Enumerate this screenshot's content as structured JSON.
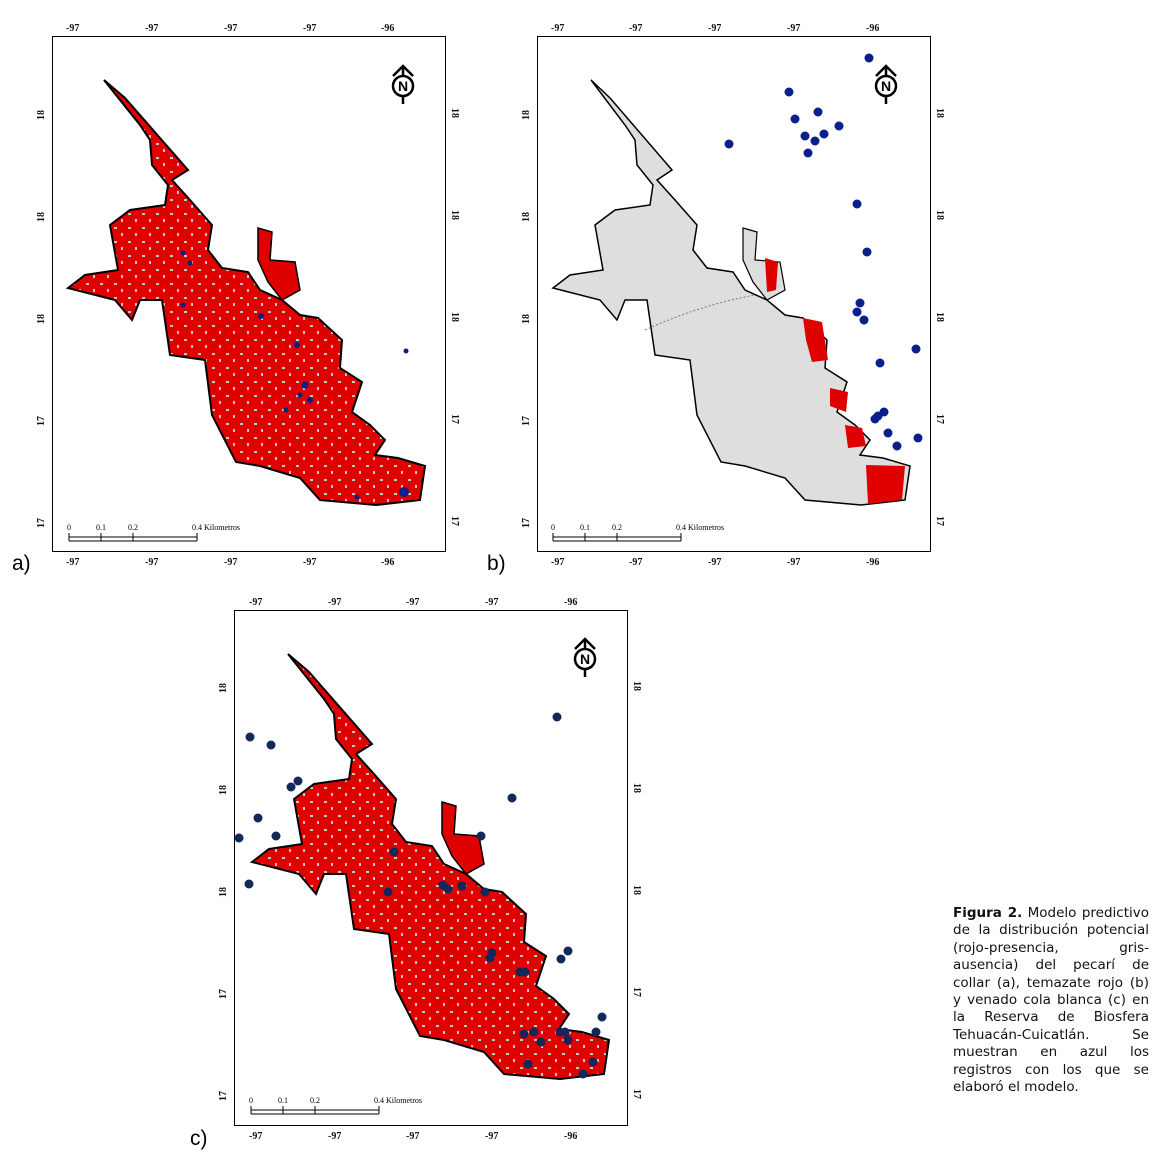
{
  "panels": [
    {
      "id": "a",
      "label": "a)",
      "top_ticks": [
        "-97",
        "-97",
        "-97",
        "-97",
        "-96"
      ],
      "bottom_ticks": [
        "-97",
        "-97",
        "-97",
        "-97",
        "-96"
      ],
      "left_ticks": [
        "18",
        "18",
        "18",
        "17",
        "17"
      ],
      "right_ticks": [
        "18",
        "18",
        "18",
        "17",
        "17"
      ],
      "scale": [
        "0",
        "0.1",
        "0.2",
        "0.4 Kilometros"
      ],
      "north": "N"
    },
    {
      "id": "b",
      "label": "b)",
      "top_ticks": [
        "-97",
        "-97",
        "-97",
        "-97",
        "-96"
      ],
      "bottom_ticks": [
        "-97",
        "-97",
        "-97",
        "-97",
        "-96"
      ],
      "left_ticks": [
        "18",
        "18",
        "18",
        "17",
        "17"
      ],
      "right_ticks": [
        "18",
        "18",
        "18",
        "17",
        "17"
      ],
      "scale": [
        "0",
        "0.1",
        "0.2",
        "0.4 Kilometros"
      ],
      "north": "N"
    },
    {
      "id": "c",
      "label": "c)",
      "top_ticks": [
        "-97",
        "-97",
        "-97",
        "-97",
        "-96"
      ],
      "bottom_ticks": [
        "-97",
        "-97",
        "-97",
        "-97",
        "-96"
      ],
      "left_ticks": [
        "18",
        "18",
        "18",
        "17",
        "17"
      ],
      "right_ticks": [
        "18",
        "18",
        "18",
        "17",
        "17"
      ],
      "scale": [
        "0",
        "0.1",
        "0.2",
        "0.4 Kilometros"
      ],
      "north": "N"
    }
  ],
  "legend_colors": {
    "presence": "#e00000",
    "absence": "#c8c8c8",
    "records": "#0a1e8c"
  },
  "caption": {
    "lead": "Figura 2.",
    "text": "Modelo predictivo de la distribución potencial (rojo-presencia, gris-ausencia) del pecarí de collar (a), temazate rojo (b) y venado cola blanca (c) en la Reserva de Biosfera Tehuacán-Cuicatlán. Se muestran en azul los registros con los que se elaboró el modelo."
  }
}
